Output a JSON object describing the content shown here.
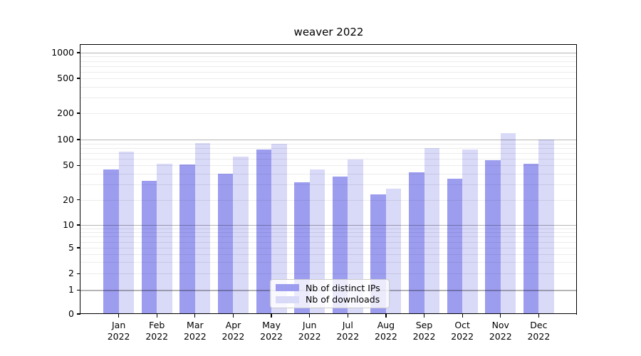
{
  "window": {
    "background": "#ffffff"
  },
  "chart_data": {
    "type": "bar",
    "title": "weaver 2022",
    "categories": [
      "Jan 2022",
      "Feb 2022",
      "Mar 2022",
      "Apr 2022",
      "May 2022",
      "Jun 2022",
      "Jul 2022",
      "Aug 2022",
      "Sep 2022",
      "Oct 2022",
      "Nov 2022",
      "Dec 2022"
    ],
    "series": [
      {
        "name": "Nb of distinct IPs",
        "color": "#9d9df0",
        "values": [
          45,
          33,
          51,
          40,
          76,
          32,
          37,
          23,
          42,
          35,
          57,
          52
        ]
      },
      {
        "name": "Nb of downloads",
        "color": "#d9d9f8",
        "values": [
          72,
          52,
          91,
          63,
          90,
          45,
          59,
          27,
          80,
          76,
          119,
          100
        ]
      }
    ],
    "yscale": "symlog",
    "yticks": [
      0,
      1,
      2,
      5,
      10,
      20,
      50,
      100,
      200,
      500,
      1000
    ],
    "ylim": [
      0,
      1200
    ],
    "grid": true,
    "legend_position": "lower center",
    "legend_labels": [
      "Nb of distinct IPs",
      "Nb of downloads"
    ]
  }
}
